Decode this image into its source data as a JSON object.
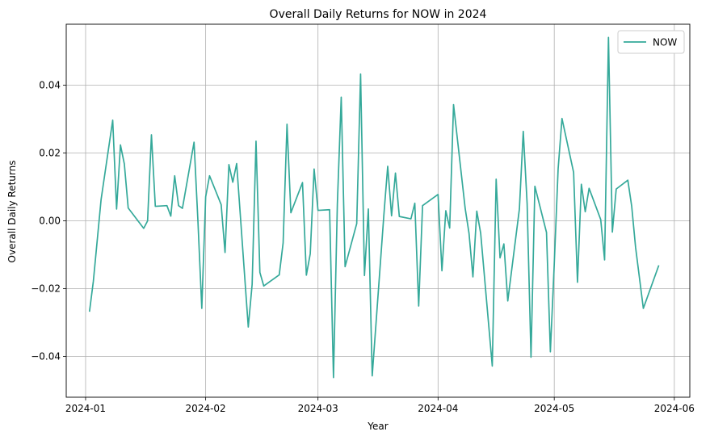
{
  "chart_data": {
    "type": "line",
    "title": "Overall Daily Returns for NOW in 2024",
    "xlabel": "Year",
    "ylabel": "Overall Daily Returns",
    "x_ticks": [
      "2024-01",
      "2024-02",
      "2024-03",
      "2024-04",
      "2024-05",
      "2024-06"
    ],
    "y_ticks": [
      "−0.04",
      "−0.02",
      "0.00",
      "0.02",
      "0.04"
    ],
    "y_tick_values": [
      -0.04,
      -0.02,
      0.0,
      0.02,
      0.04
    ],
    "xlim": [
      "2023-12-27",
      "2024-06-05"
    ],
    "ylim": [
      -0.052,
      0.058
    ],
    "grid": true,
    "legend_position": "top-right",
    "series": [
      {
        "name": "NOW",
        "color": "#35a99a",
        "points": [
          [
            "2024-01-02",
            -0.0268
          ],
          [
            "2024-01-03",
            -0.0178
          ],
          [
            "2024-01-05",
            0.0063
          ],
          [
            "2024-01-08",
            0.0297
          ],
          [
            "2024-01-09",
            0.0035
          ],
          [
            "2024-01-10",
            0.0224
          ],
          [
            "2024-01-11",
            0.0168
          ],
          [
            "2024-01-12",
            0.0038
          ],
          [
            "2024-01-16",
            -0.0022
          ],
          [
            "2024-01-17",
            0.0
          ],
          [
            "2024-01-18",
            0.0254
          ],
          [
            "2024-01-19",
            0.0043
          ],
          [
            "2024-01-22",
            0.0045
          ],
          [
            "2024-01-23",
            0.0014
          ],
          [
            "2024-01-24",
            0.0133
          ],
          [
            "2024-01-25",
            0.0045
          ],
          [
            "2024-01-26",
            0.0037
          ],
          [
            "2024-01-29",
            0.0232
          ],
          [
            "2024-01-30",
            0.0
          ],
          [
            "2024-01-31",
            -0.0258
          ],
          [
            "2024-02-01",
            0.0071
          ],
          [
            "2024-02-02",
            0.0133
          ],
          [
            "2024-02-05",
            0.0048
          ],
          [
            "2024-02-06",
            -0.0093
          ],
          [
            "2024-02-07",
            0.0166
          ],
          [
            "2024-02-08",
            0.0114
          ],
          [
            "2024-02-09",
            0.0169
          ],
          [
            "2024-02-12",
            -0.0313
          ],
          [
            "2024-02-13",
            -0.0187
          ],
          [
            "2024-02-14",
            0.0235
          ],
          [
            "2024-02-15",
            -0.0152
          ],
          [
            "2024-02-16",
            -0.0192
          ],
          [
            "2024-02-20",
            -0.0159
          ],
          [
            "2024-02-21",
            -0.0065
          ],
          [
            "2024-02-22",
            0.0285
          ],
          [
            "2024-02-23",
            0.0024
          ],
          [
            "2024-02-26",
            0.0113
          ],
          [
            "2024-02-27",
            -0.016
          ],
          [
            "2024-02-28",
            -0.0097
          ],
          [
            "2024-02-29",
            0.0153
          ],
          [
            "2024-03-01",
            0.0031
          ],
          [
            "2024-03-04",
            0.0033
          ],
          [
            "2024-03-05",
            -0.0462
          ],
          [
            "2024-03-06",
            0.0049
          ],
          [
            "2024-03-07",
            0.0365
          ],
          [
            "2024-03-08",
            -0.0135
          ],
          [
            "2024-03-11",
            -0.0008
          ],
          [
            "2024-03-12",
            0.0433
          ],
          [
            "2024-03-13",
            -0.0161
          ],
          [
            "2024-03-14",
            0.0035
          ],
          [
            "2024-03-15",
            -0.0457
          ],
          [
            "2024-03-18",
            0.0016
          ],
          [
            "2024-03-19",
            0.0161
          ],
          [
            "2024-03-20",
            0.0015
          ],
          [
            "2024-03-21",
            0.0141
          ],
          [
            "2024-03-22",
            0.0013
          ],
          [
            "2024-03-25",
            0.0006
          ],
          [
            "2024-03-26",
            0.0052
          ],
          [
            "2024-03-27",
            -0.0251
          ],
          [
            "2024-03-28",
            0.0045
          ],
          [
            "2024-04-01",
            0.0078
          ],
          [
            "2024-04-02",
            -0.0147
          ],
          [
            "2024-04-03",
            0.003
          ],
          [
            "2024-04-04",
            -0.0021
          ],
          [
            "2024-04-05",
            0.0343
          ],
          [
            "2024-04-08",
            0.0037
          ],
          [
            "2024-04-09",
            -0.0037
          ],
          [
            "2024-04-10",
            -0.0165
          ],
          [
            "2024-04-11",
            0.0029
          ],
          [
            "2024-04-12",
            -0.0036
          ],
          [
            "2024-04-15",
            -0.0428
          ],
          [
            "2024-04-16",
            0.0123
          ],
          [
            "2024-04-17",
            -0.0109
          ],
          [
            "2024-04-18",
            -0.0068
          ],
          [
            "2024-04-19",
            -0.0236
          ],
          [
            "2024-04-22",
            0.0035
          ],
          [
            "2024-04-23",
            0.0264
          ],
          [
            "2024-04-24",
            0.005
          ],
          [
            "2024-04-25",
            -0.0402
          ],
          [
            "2024-04-26",
            0.0102
          ],
          [
            "2024-04-29",
            -0.0034
          ],
          [
            "2024-04-30",
            -0.0386
          ],
          [
            "2024-05-01",
            -0.0128
          ],
          [
            "2024-05-02",
            0.0153
          ],
          [
            "2024-05-03",
            0.0302
          ],
          [
            "2024-05-06",
            0.0143
          ],
          [
            "2024-05-07",
            -0.0181
          ],
          [
            "2024-05-08",
            0.0108
          ],
          [
            "2024-05-09",
            0.0027
          ],
          [
            "2024-05-10",
            0.0096
          ],
          [
            "2024-05-13",
            0.0004
          ],
          [
            "2024-05-14",
            -0.0115
          ],
          [
            "2024-05-15",
            0.0541
          ],
          [
            "2024-05-16",
            -0.0033
          ],
          [
            "2024-05-17",
            0.0094
          ],
          [
            "2024-05-20",
            0.012
          ],
          [
            "2024-05-21",
            0.0043
          ],
          [
            "2024-05-22",
            -0.0078
          ],
          [
            "2024-05-24",
            -0.0258
          ],
          [
            "2024-05-28",
            -0.0131
          ]
        ]
      }
    ]
  }
}
